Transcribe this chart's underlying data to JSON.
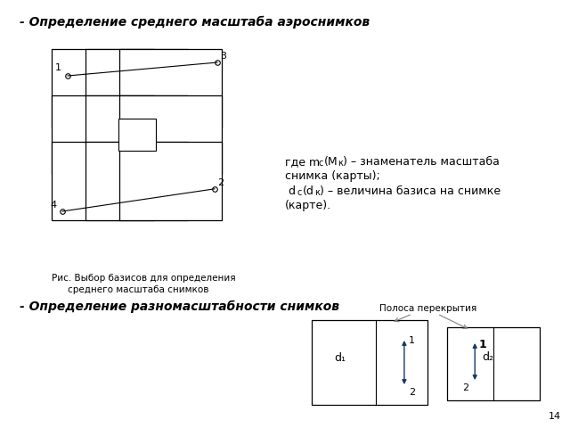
{
  "title1": "- Определение среднего масштаба аэроснимков",
  "title2": "- Определение разномасштабности снимков",
  "fig_caption_line1": "Рис. Выбор базисов для определения",
  "fig_caption_line2": "среднего масштаба снимков",
  "formula_line1": "где m",
  "formula_line1b": "c",
  "formula_line1c": "(M",
  "formula_line1d": "к",
  "formula_line1e": ") – знаменатель масштаба",
  "formula_line2": "снимка (карты);",
  "formula_line3": " d",
  "formula_line3b": "c",
  "formula_line3c": "(d",
  "formula_line3d": "к",
  "formula_line3e": ") – величина базиса на снимке",
  "formula_line4": "(карте).",
  "overlap_label": "Полоса перекрытия",
  "page_num": "14",
  "bg_color": "#ffffff",
  "line_color": "#000000",
  "arrow_color": "#17375e",
  "gray_color": "#7f7f7f"
}
